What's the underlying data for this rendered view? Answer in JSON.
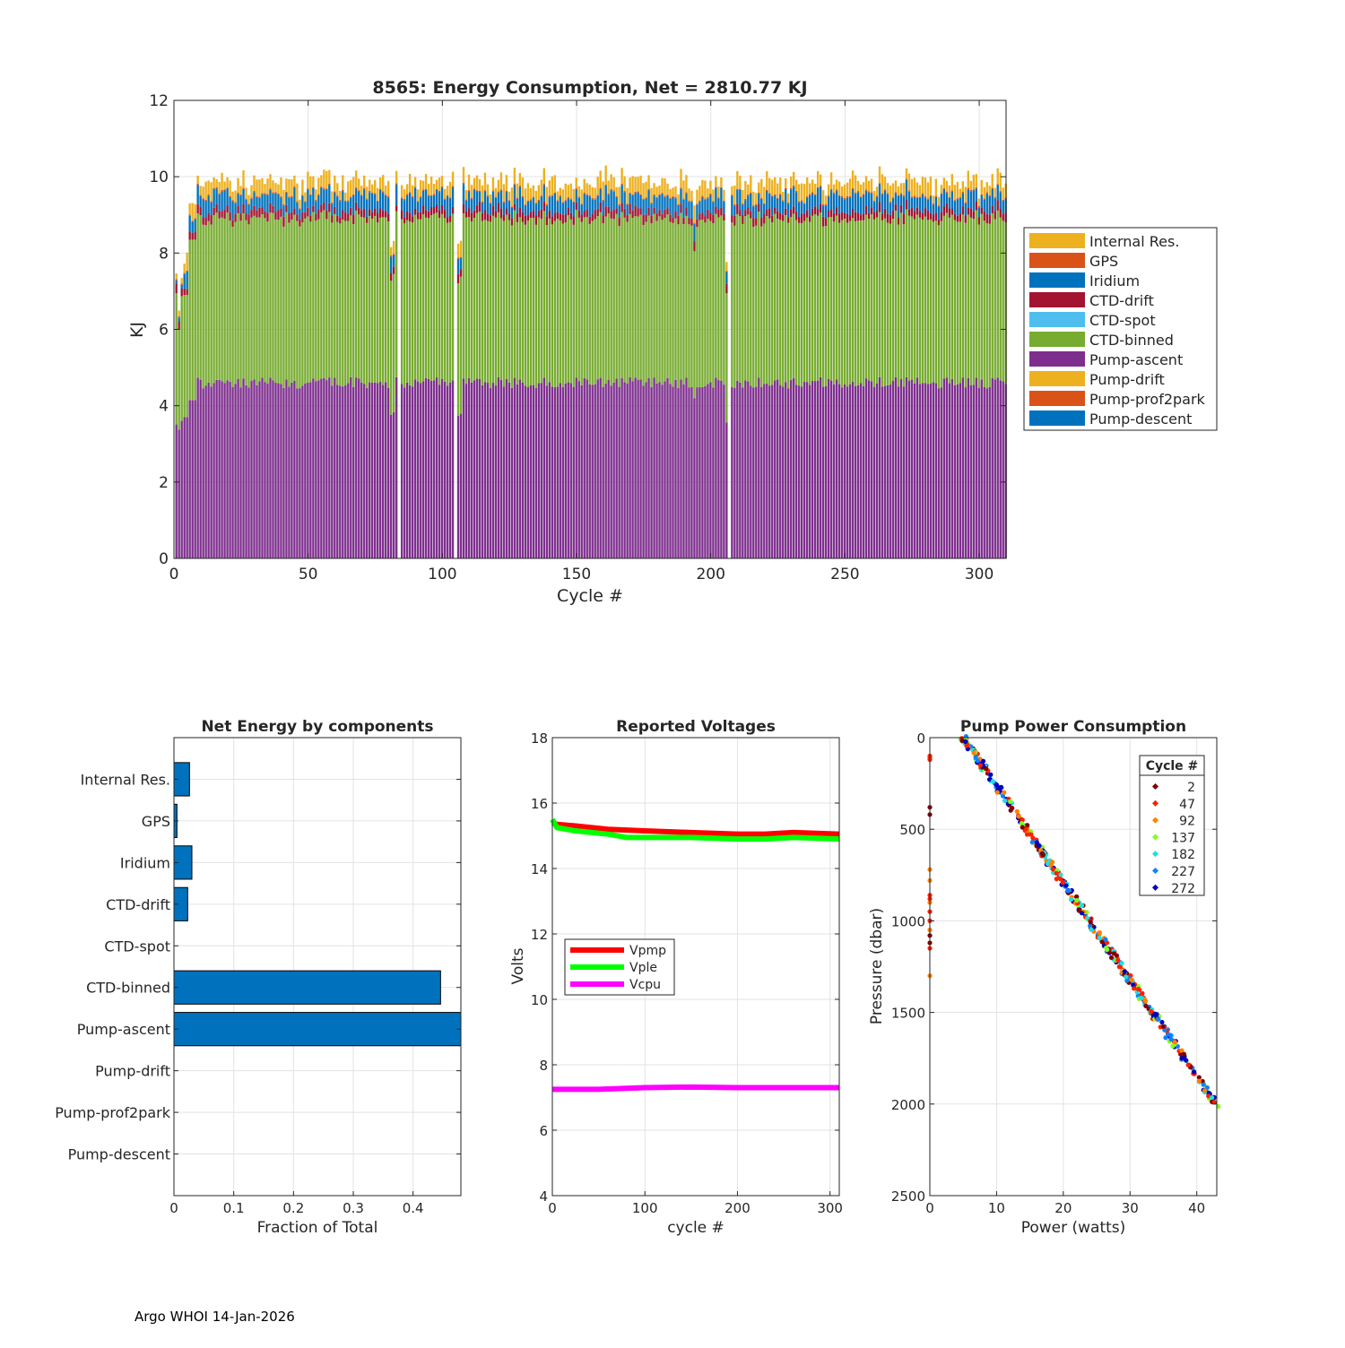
{
  "footer": "Argo WHOI 14-Jan-2026",
  "chart_data": [
    {
      "type": "bar",
      "stacked": true,
      "title": "8565: Energy Consumption,  Net = 2810.77 KJ",
      "xlabel": "Cycle #",
      "ylabel": "KJ",
      "xlim": [
        0,
        310
      ],
      "ylim": [
        0,
        12
      ],
      "xticks": [
        0,
        50,
        100,
        150,
        200,
        250,
        300
      ],
      "yticks": [
        0,
        2,
        4,
        6,
        8,
        10,
        12
      ],
      "grid": true,
      "legend_position": "right",
      "num_cycles": 310,
      "series": [
        {
          "name": "Pump-descent",
          "color": "#0072bd",
          "typical": 0.0
        },
        {
          "name": "Pump-prof2park",
          "color": "#d95319",
          "typical": 0.0
        },
        {
          "name": "Pump-drift",
          "color": "#edb120",
          "typical": 0.0
        },
        {
          "name": "Pump-ascent",
          "color": "#7e2f8e",
          "typical": 4.5
        },
        {
          "name": "CTD-binned",
          "color": "#77ac30",
          "typical": 4.3
        },
        {
          "name": "CTD-spot",
          "color": "#4dbeee",
          "typical": 0.0
        },
        {
          "name": "CTD-drift",
          "color": "#a2142f",
          "typical": 0.2
        },
        {
          "name": "Iridium",
          "color": "#0072bd",
          "typical": 0.35
        },
        {
          "name": "GPS",
          "color": "#d95319",
          "typical": 0.03
        },
        {
          "name": "Internal Res.",
          "color": "#edb120",
          "typical": 0.3
        }
      ],
      "legend_order": [
        "Internal Res.",
        "GPS",
        "Iridium",
        "CTD-drift",
        "CTD-spot",
        "CTD-binned",
        "Pump-ascent",
        "Pump-drift",
        "Pump-prof2park",
        "Pump-descent"
      ]
    },
    {
      "type": "bar",
      "orientation": "horizontal",
      "title": "Net Energy by components",
      "xlabel": "Fraction of Total",
      "xlim": [
        0,
        0.48
      ],
      "xticks": [
        0,
        0.1,
        0.2,
        0.3,
        0.4
      ],
      "xtick_labels": [
        "0",
        "0.1",
        "0.2",
        "0.3",
        "0.4"
      ],
      "categories": [
        "Internal Res.",
        "GPS",
        "Iridium",
        "CTD-drift",
        "CTD-spot",
        "CTD-binned",
        "Pump-ascent",
        "Pump-drift",
        "Pump-prof2park",
        "Pump-descent"
      ],
      "values": [
        0.026,
        0.005,
        0.03,
        0.023,
        0.0,
        0.446,
        0.49,
        0.0,
        0.0,
        0.0
      ],
      "color": "#0072bd"
    },
    {
      "type": "line",
      "title": "Reported Voltages",
      "xlabel": "cycle #",
      "ylabel": "Volts",
      "xlim": [
        0,
        310
      ],
      "ylim": [
        4,
        18
      ],
      "xticks": [
        0,
        100,
        200,
        300
      ],
      "yticks": [
        4,
        6,
        8,
        10,
        12,
        14,
        16,
        18
      ],
      "legend_position": "middle-left",
      "series": [
        {
          "name": "Vpmp",
          "color": "#ff0000",
          "x": [
            0,
            5,
            25,
            60,
            100,
            150,
            200,
            230,
            260,
            310
          ],
          "y": [
            15.4,
            15.35,
            15.3,
            15.2,
            15.15,
            15.1,
            15.05,
            15.05,
            15.1,
            15.05
          ]
        },
        {
          "name": "Vple",
          "color": "#00ff00",
          "x": [
            0,
            5,
            25,
            60,
            80,
            100,
            150,
            200,
            230,
            260,
            310
          ],
          "y": [
            15.5,
            15.25,
            15.15,
            15.05,
            14.95,
            14.95,
            14.95,
            14.9,
            14.9,
            14.95,
            14.9
          ]
        },
        {
          "name": "Vcpu",
          "color": "#ff00ff",
          "x": [
            0,
            50,
            100,
            150,
            200,
            250,
            310
          ],
          "y": [
            7.25,
            7.25,
            7.3,
            7.32,
            7.3,
            7.3,
            7.3
          ]
        }
      ]
    },
    {
      "type": "scatter",
      "title": "Pump Power Consumption",
      "xlabel": "Power (watts)",
      "ylabel": "Pressure (dbar)",
      "xlim": [
        0,
        43
      ],
      "ylim": [
        2500,
        0
      ],
      "y_reversed": true,
      "xticks": [
        0,
        10,
        20,
        30,
        40
      ],
      "yticks": [
        0,
        500,
        1000,
        1500,
        2000,
        2500
      ],
      "legend_title": "Cycle #",
      "legend_position": "top-right",
      "series": [
        {
          "name": "2",
          "color": "#800000"
        },
        {
          "name": "47",
          "color": "#ff2000"
        },
        {
          "name": "92",
          "color": "#ff8000"
        },
        {
          "name": "137",
          "color": "#80ff20"
        },
        {
          "name": "182",
          "color": "#20e0e0"
        },
        {
          "name": "227",
          "color": "#1080ff"
        },
        {
          "name": "272",
          "color": "#0000c0"
        }
      ],
      "trend": {
        "x": [
          5,
          43
        ],
        "y": [
          0,
          2010
        ]
      },
      "zero_power_pressures": [
        100,
        110,
        120,
        380,
        420,
        720,
        780,
        860,
        880,
        900,
        950,
        1000,
        1050,
        1080,
        1120,
        1150,
        1300
      ]
    }
  ]
}
